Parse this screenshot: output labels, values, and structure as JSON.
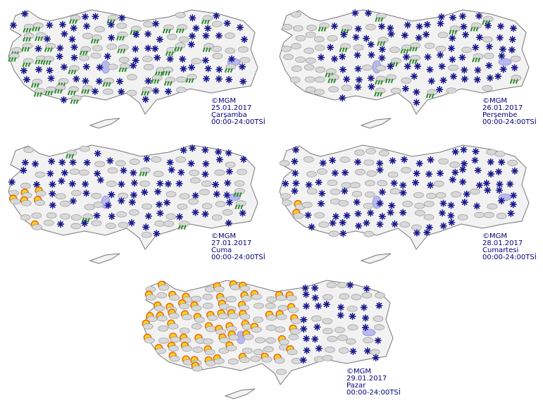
{
  "panels": [
    {
      "copyright": "©MGM",
      "date": "25.01.2017",
      "day": "Çarşamba",
      "time": "00:00-24:00TSİ"
    },
    {
      "copyright": "©MGM",
      "date": "26.01.2017",
      "day": "Perşembe",
      "time": "00:00-24:00TSİ"
    },
    {
      "copyright": "©MGM",
      "date": "27.01.2017",
      "day": "Cuma",
      "time": "00:00-24:00TSİ"
    },
    {
      "copyright": "©MGM",
      "date": "28.01.2017",
      "day": "Cumartesi",
      "time": "00:00-24:00TSİ"
    },
    {
      "copyright": "©MGM",
      "date": "29.01.2017",
      "day": "Pazar",
      "time": "00:00-24:00TSİ"
    }
  ]
}
